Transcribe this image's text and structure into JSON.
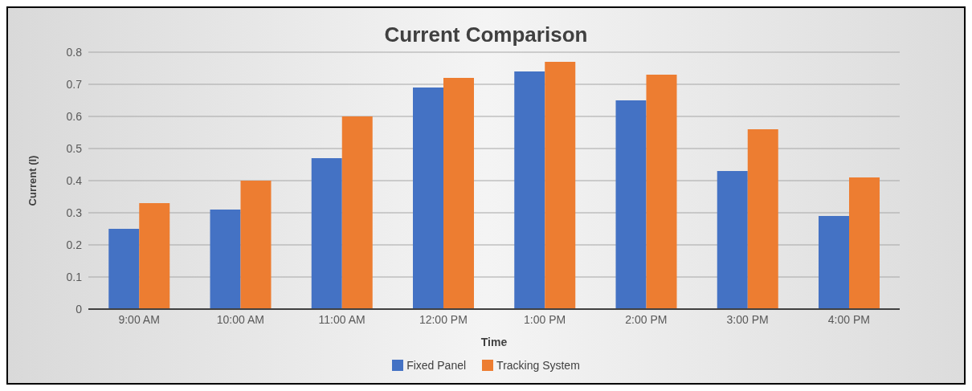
{
  "chart_data": {
    "type": "bar",
    "title": "Current Comparison",
    "xlabel": "Time",
    "ylabel": "Current (I)",
    "categories": [
      "9:00 AM",
      "10:00 AM",
      "11:00 AM",
      "12:00 PM",
      "1:00 PM",
      "2:00 PM",
      "3:00 PM",
      "4:00 PM"
    ],
    "series": [
      {
        "name": "Fixed Panel",
        "color": "#4472c4",
        "values": [
          0.25,
          0.31,
          0.47,
          0.69,
          0.74,
          0.65,
          0.43,
          0.29
        ]
      },
      {
        "name": "Tracking System",
        "color": "#ed7d31",
        "values": [
          0.33,
          0.4,
          0.6,
          0.72,
          0.77,
          0.73,
          0.56,
          0.41
        ]
      }
    ],
    "ylim": [
      0,
      0.8
    ],
    "yticks": [
      0,
      0.1,
      0.2,
      0.3,
      0.4,
      0.5,
      0.6,
      0.7,
      0.8
    ],
    "grid": "y",
    "legend": "bottom"
  }
}
